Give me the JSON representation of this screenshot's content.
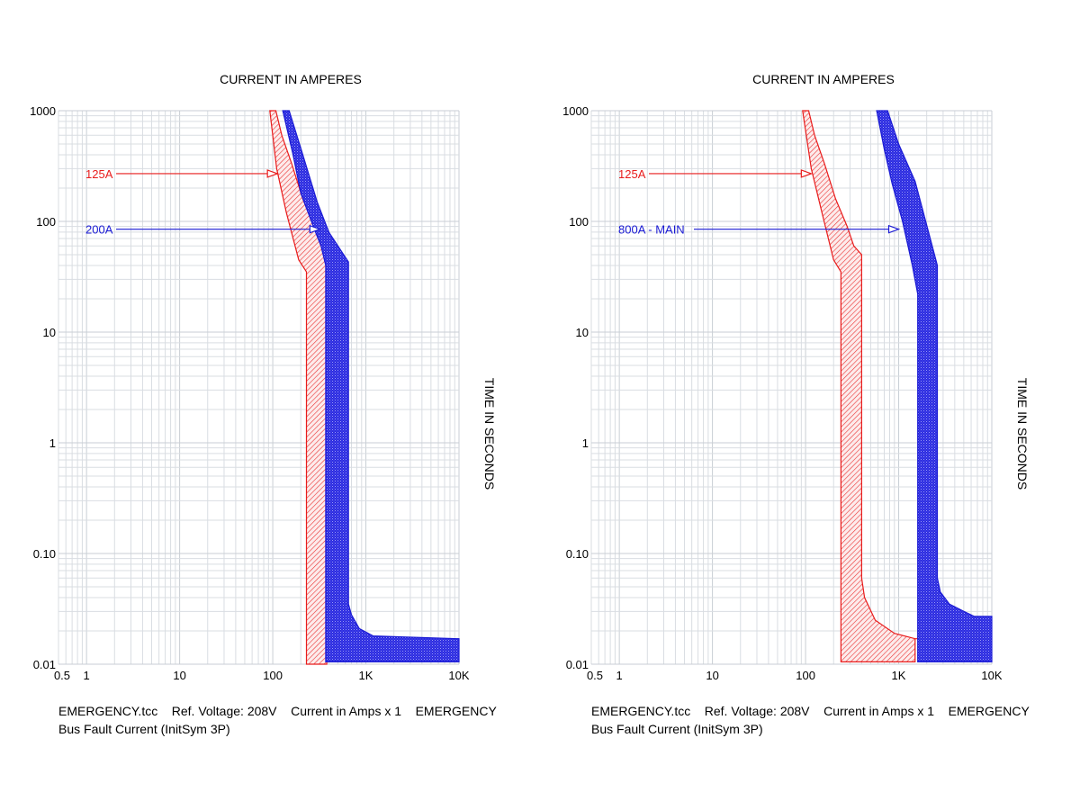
{
  "colors": {
    "red": "#e81c1c",
    "blue": "#1a1ad4",
    "grid": "#d9dde2",
    "grid_major": "#c9ced4",
    "text": "#000000"
  },
  "chart_data": [
    {
      "type": "area",
      "scale": "log-log",
      "title": "CURRENT IN AMPERES",
      "xlabel": "CURRENT IN AMPERES",
      "ylabel": "TIME IN SECONDS",
      "xlim": [
        0.5,
        10000
      ],
      "ylim": [
        0.01,
        1000
      ],
      "x_tick_labels": [
        "0.5",
        "1",
        "10",
        "100",
        "1K",
        "10K"
      ],
      "x_tick_values": [
        0.5,
        1,
        10,
        100,
        1000,
        10000
      ],
      "y_tick_labels": [
        "1000",
        "100",
        "10",
        "1",
        "0.10",
        "0.01"
      ],
      "y_tick_values": [
        1000,
        100,
        10,
        1,
        0.1,
        0.01
      ],
      "footer": [
        "EMERGENCY.tcc    Ref. Voltage: 208V    Current in Amps x 1    EMERGENCY",
        "Bus Fault Current (InitSym 3P)"
      ],
      "series": [
        {
          "name": "125A",
          "color": "red",
          "band": [
            [
              93,
              1000
            ],
            [
              108,
              1000
            ],
            [
              125,
              600
            ],
            [
              160,
              330
            ],
            [
              210,
              160
            ],
            [
              280,
              90
            ],
            [
              330,
              60
            ],
            [
              380,
              50
            ],
            [
              380,
              0.01
            ],
            [
              230,
              0.01
            ],
            [
              230,
              35
            ],
            [
              190,
              45
            ],
            [
              140,
              120
            ],
            [
              110,
              300
            ]
          ],
          "label_time": 270,
          "arrow_current": 112
        },
        {
          "name": "200A",
          "color": "blue",
          "band": [
            [
              128,
              1000
            ],
            [
              150,
              1000
            ],
            [
              200,
              460
            ],
            [
              300,
              150
            ],
            [
              400,
              80
            ],
            [
              650,
              43
            ],
            [
              650,
              0.035
            ],
            [
              700,
              0.028
            ],
            [
              850,
              0.021
            ],
            [
              1200,
              0.018
            ],
            [
              10000,
              0.017
            ],
            [
              10000,
              0.0105
            ],
            [
              370,
              0.0105
            ],
            [
              370,
              40
            ],
            [
              330,
              60
            ],
            [
              280,
              85
            ],
            [
              200,
              180
            ],
            [
              165,
              400
            ]
          ],
          "label_time": 85,
          "arrow_current": 320
        }
      ]
    },
    {
      "type": "area",
      "scale": "log-log",
      "title": "CURRENT IN AMPERES",
      "xlabel": "CURRENT IN AMPERES",
      "ylabel": "TIME IN SECONDS",
      "xlim": [
        0.5,
        10000
      ],
      "ylim": [
        0.01,
        1000
      ],
      "x_tick_labels": [
        "0.5",
        "1",
        "10",
        "100",
        "1K",
        "10K"
      ],
      "x_tick_values": [
        0.5,
        1,
        10,
        100,
        1000,
        10000
      ],
      "y_tick_labels": [
        "1000",
        "100",
        "10",
        "1",
        "0.10",
        "0.01"
      ],
      "y_tick_values": [
        1000,
        100,
        10,
        1,
        0.1,
        0.01
      ],
      "footer": [
        "EMERGENCY.tcc    Ref. Voltage: 208V    Current in Amps x 1    EMERGENCY",
        "Bus Fault Current (InitSym 3P)"
      ],
      "series": [
        {
          "name": "125A",
          "color": "red",
          "band": [
            [
              93,
              1000
            ],
            [
              108,
              1000
            ],
            [
              125,
              600
            ],
            [
              160,
              330
            ],
            [
              210,
              160
            ],
            [
              280,
              90
            ],
            [
              330,
              60
            ],
            [
              400,
              50
            ],
            [
              400,
              0.06
            ],
            [
              430,
              0.04
            ],
            [
              560,
              0.025
            ],
            [
              900,
              0.019
            ],
            [
              1500,
              0.017
            ],
            [
              10000,
              0.017
            ],
            [
              1500,
              0.017
            ],
            [
              1500,
              0.0105
            ],
            [
              240,
              0.0105
            ],
            [
              240,
              35
            ],
            [
              200,
              45
            ],
            [
              150,
              120
            ],
            [
              115,
              300
            ]
          ],
          "label_time": 270,
          "arrow_current": 115
        },
        {
          "name": "800A - MAIN",
          "color": "blue",
          "band": [
            [
              580,
              1000
            ],
            [
              760,
              1000
            ],
            [
              1000,
              500
            ],
            [
              1500,
              230
            ],
            [
              2600,
              40
            ],
            [
              2600,
              0.06
            ],
            [
              2800,
              0.045
            ],
            [
              3500,
              0.035
            ],
            [
              5000,
              0.03
            ],
            [
              6500,
              0.027
            ],
            [
              10000,
              0.027
            ],
            [
              10000,
              0.0105
            ],
            [
              1600,
              0.0105
            ],
            [
              1600,
              22
            ],
            [
              1400,
              40
            ],
            [
              1100,
              100
            ],
            [
              850,
              220
            ],
            [
              700,
              450
            ]
          ],
          "label_time": 85,
          "arrow_current": 1000
        }
      ]
    }
  ]
}
